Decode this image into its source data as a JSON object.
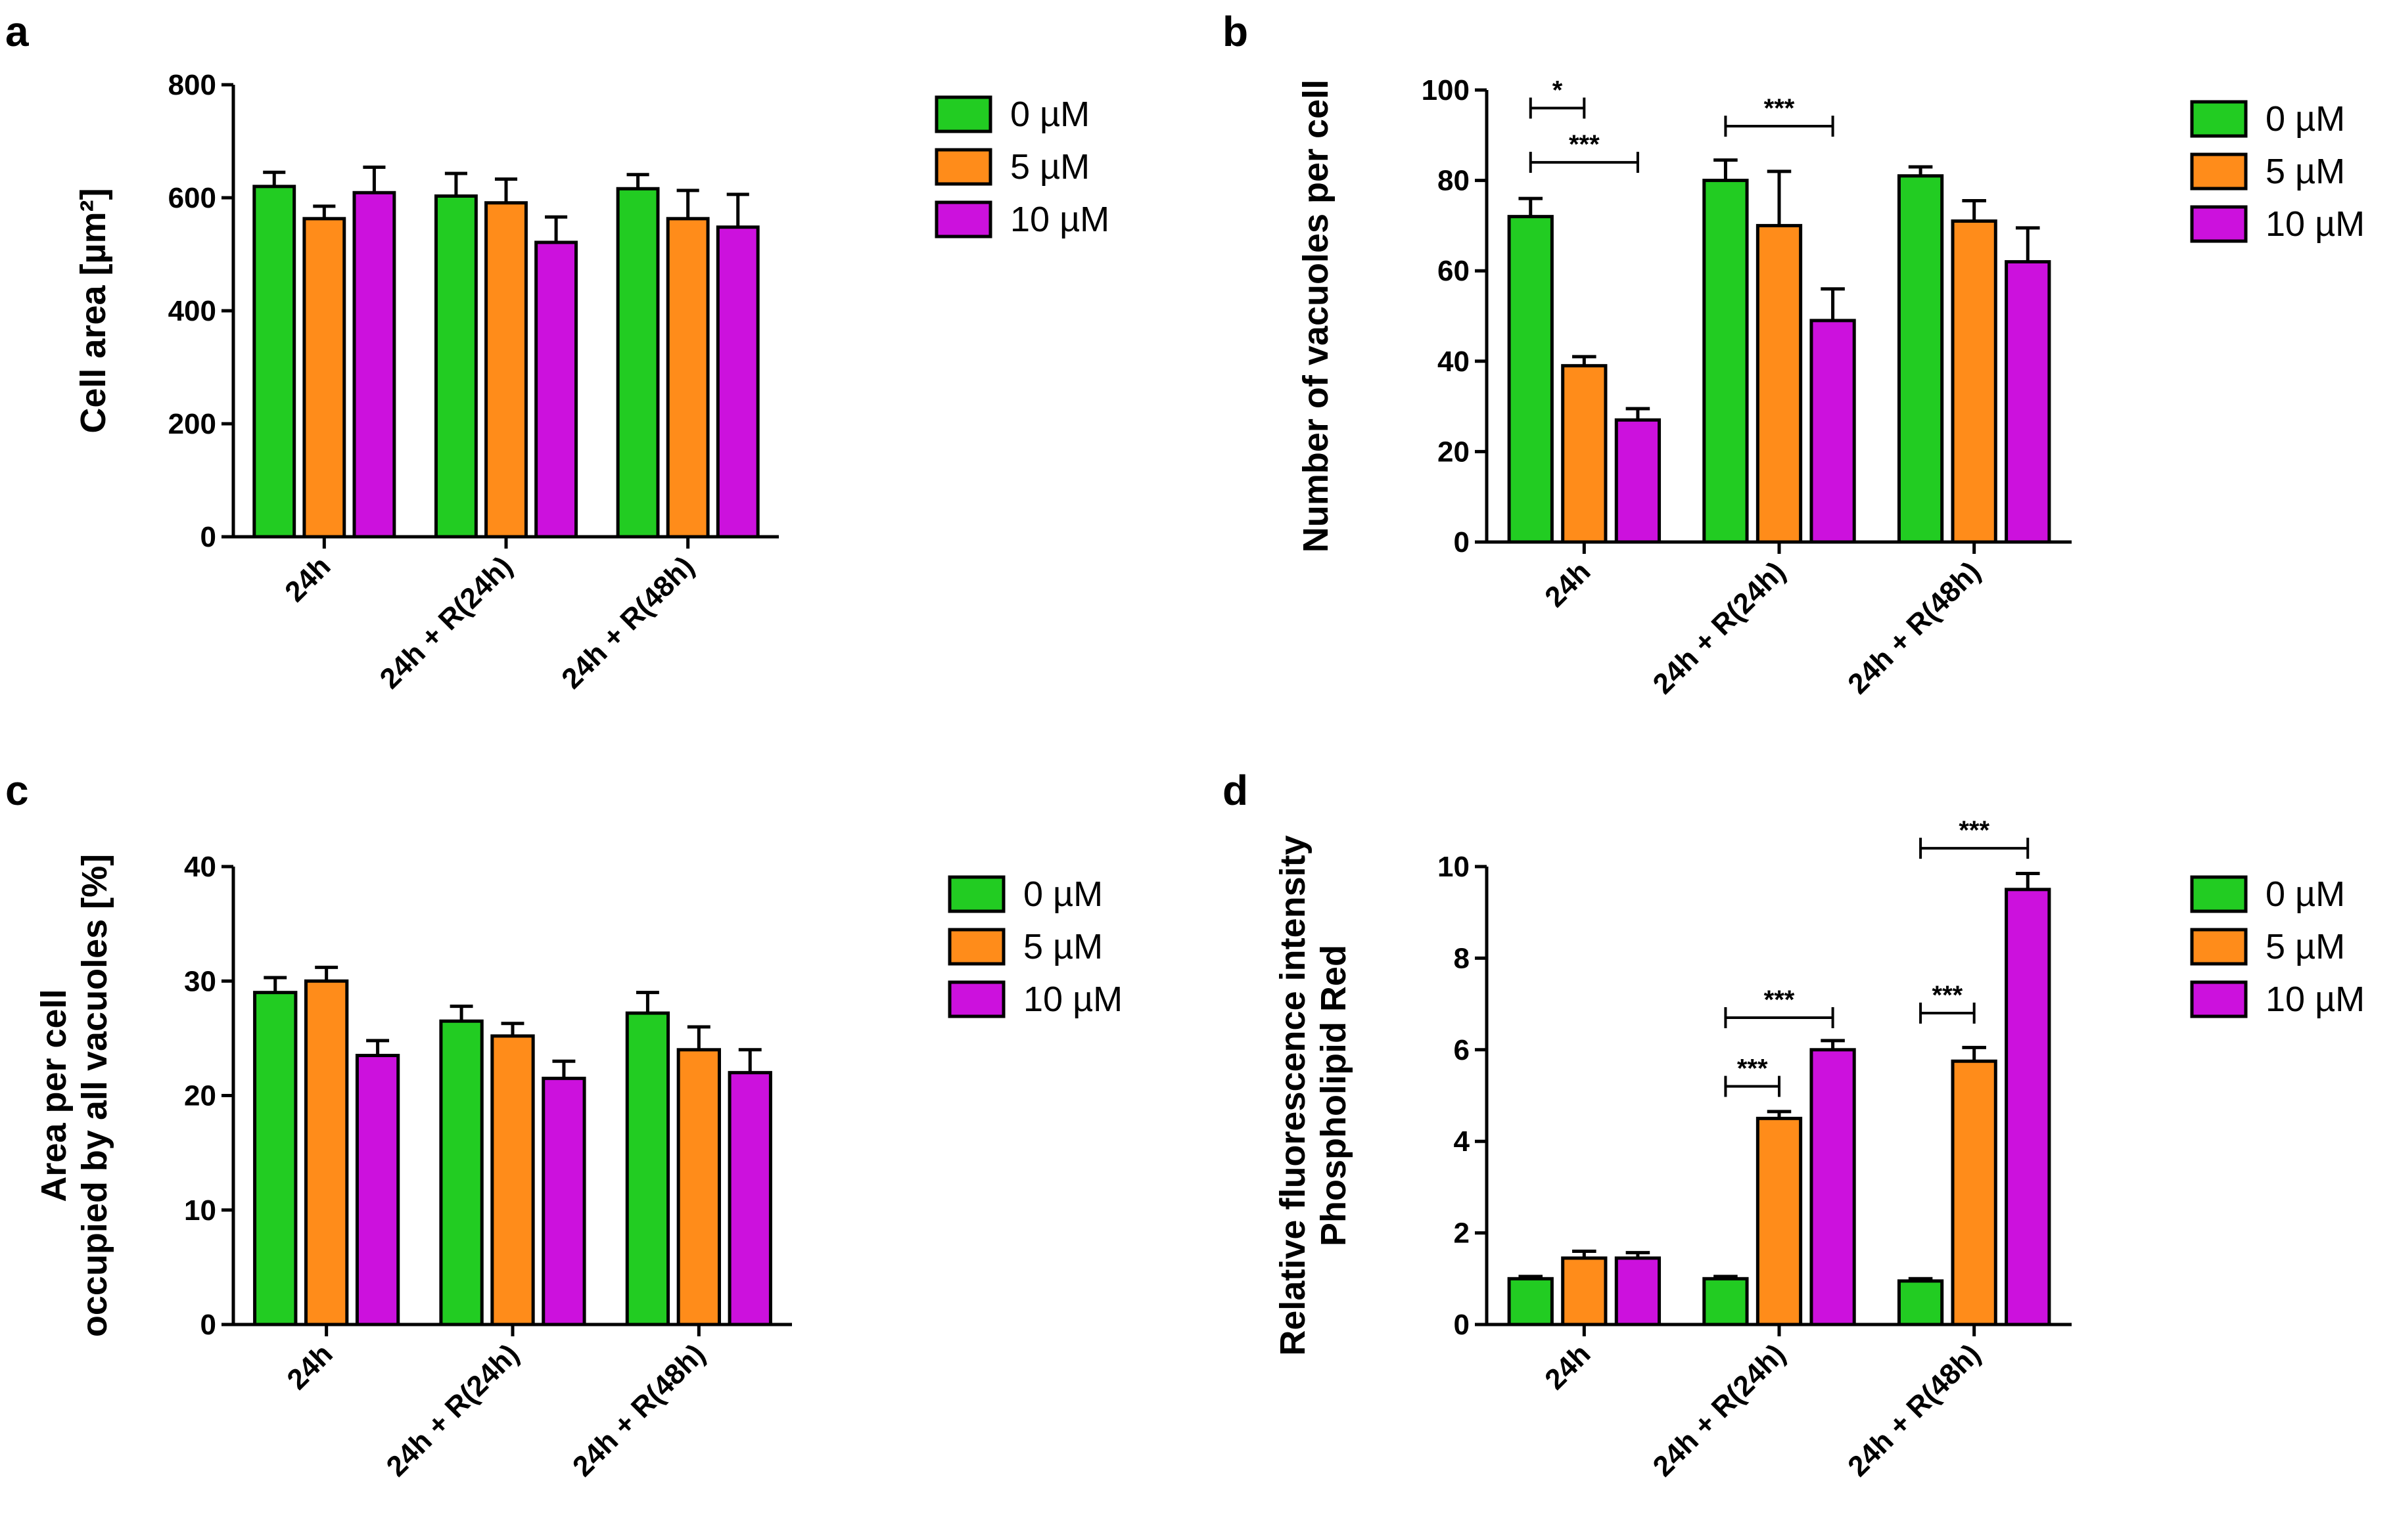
{
  "legend": [
    "0 µM",
    "5 µM",
    "10 µM"
  ],
  "colors": {
    "0 µM": "#22cc22",
    "5 µM": "#ff8c1a",
    "10 µM": "#cc11dd",
    "axis": "#000000"
  },
  "chart_data": [
    {
      "panel": "a",
      "type": "bar",
      "categories": [
        "24h",
        "24h + R(24h)",
        "24h + R(48h)"
      ],
      "ylabel": "Cell area [µm²]",
      "ylabel_lines": [
        "Cell area [µm²]"
      ],
      "ylim": [
        0,
        800
      ],
      "yticks": [
        0,
        200,
        400,
        600,
        800
      ],
      "series": [
        {
          "name": "0 µM",
          "values": [
            620,
            603,
            616
          ],
          "errors": [
            25,
            40,
            25
          ]
        },
        {
          "name": "5 µM",
          "values": [
            563,
            591,
            563
          ],
          "errors": [
            22,
            42,
            50
          ]
        },
        {
          "name": "10 µM",
          "values": [
            609,
            521,
            548
          ],
          "errors": [
            45,
            45,
            58
          ]
        }
      ],
      "significance": []
    },
    {
      "panel": "b",
      "type": "bar",
      "categories": [
        "24h",
        "24h + R(24h)",
        "24h + R(48h)"
      ],
      "ylabel": "Number of vacuoles per cell",
      "ylabel_lines": [
        "Number of vacuoles per cell"
      ],
      "ylim": [
        0,
        100
      ],
      "yticks": [
        0,
        20,
        40,
        60,
        80,
        100
      ],
      "series": [
        {
          "name": "0 µM",
          "values": [
            72,
            80,
            81
          ],
          "errors": [
            4,
            4.5,
            2
          ]
        },
        {
          "name": "5 µM",
          "values": [
            39,
            70,
            71
          ],
          "errors": [
            2,
            12,
            4.5
          ]
        },
        {
          "name": "10 µM",
          "values": [
            27,
            49,
            62
          ],
          "errors": [
            2.5,
            7,
            7.5
          ]
        }
      ],
      "significance": [
        {
          "group": 0,
          "from": 0,
          "to": 1,
          "y": 96,
          "label": "*"
        },
        {
          "group": 0,
          "from": 0,
          "to": 2,
          "y": 84,
          "label": "***"
        },
        {
          "group": 1,
          "from": 0,
          "to": 2,
          "y": 92,
          "label": "***"
        }
      ]
    },
    {
      "panel": "c",
      "type": "bar",
      "categories": [
        "24h",
        "24h + R(24h)",
        "24h + R(48h)"
      ],
      "ylabel": "Area per cell occupied by all vacuoles [%]",
      "ylabel_lines": [
        "Area per cell",
        "occupied by all vacuoles [%]"
      ],
      "ylim": [
        0,
        40
      ],
      "yticks": [
        0,
        10,
        20,
        30,
        40
      ],
      "series": [
        {
          "name": "0 µM",
          "values": [
            29,
            26.5,
            27.2
          ],
          "errors": [
            1.3,
            1.3,
            1.8
          ]
        },
        {
          "name": "5 µM",
          "values": [
            30,
            25.2,
            24
          ],
          "errors": [
            1.2,
            1.1,
            2
          ]
        },
        {
          "name": "10 µM",
          "values": [
            23.5,
            21.5,
            22
          ],
          "errors": [
            1.3,
            1.5,
            2
          ]
        }
      ],
      "significance": []
    },
    {
      "panel": "d",
      "type": "bar",
      "categories": [
        "24h",
        "24h + R(24h)",
        "24h + R(48h)"
      ],
      "ylabel": "Relative fluorescence intensity Phospholipid Red",
      "ylabel_lines": [
        "Relative fluorescence intensity",
        "Phospholipid Red"
      ],
      "ylim": [
        0,
        10
      ],
      "yticks": [
        0,
        2,
        4,
        6,
        8,
        10
      ],
      "series": [
        {
          "name": "0 µM",
          "values": [
            1.0,
            1.0,
            0.95
          ],
          "errors": [
            0.05,
            0.05,
            0.05
          ]
        },
        {
          "name": "5 µM",
          "values": [
            1.45,
            4.5,
            5.75
          ],
          "errors": [
            0.15,
            0.15,
            0.3
          ]
        },
        {
          "name": "10 µM",
          "values": [
            1.45,
            6.0,
            9.5
          ],
          "errors": [
            0.12,
            0.2,
            0.35
          ]
        }
      ],
      "significance": [
        {
          "group": 1,
          "from": 0,
          "to": 1,
          "y": 5.2,
          "label": "***"
        },
        {
          "group": 1,
          "from": 0,
          "to": 2,
          "y": 6.7,
          "label": "***"
        },
        {
          "group": 2,
          "from": 0,
          "to": 1,
          "y": 6.8,
          "label": "***"
        },
        {
          "group": 2,
          "from": 0,
          "to": 2,
          "y": 10.4,
          "label": "***"
        }
      ]
    }
  ]
}
